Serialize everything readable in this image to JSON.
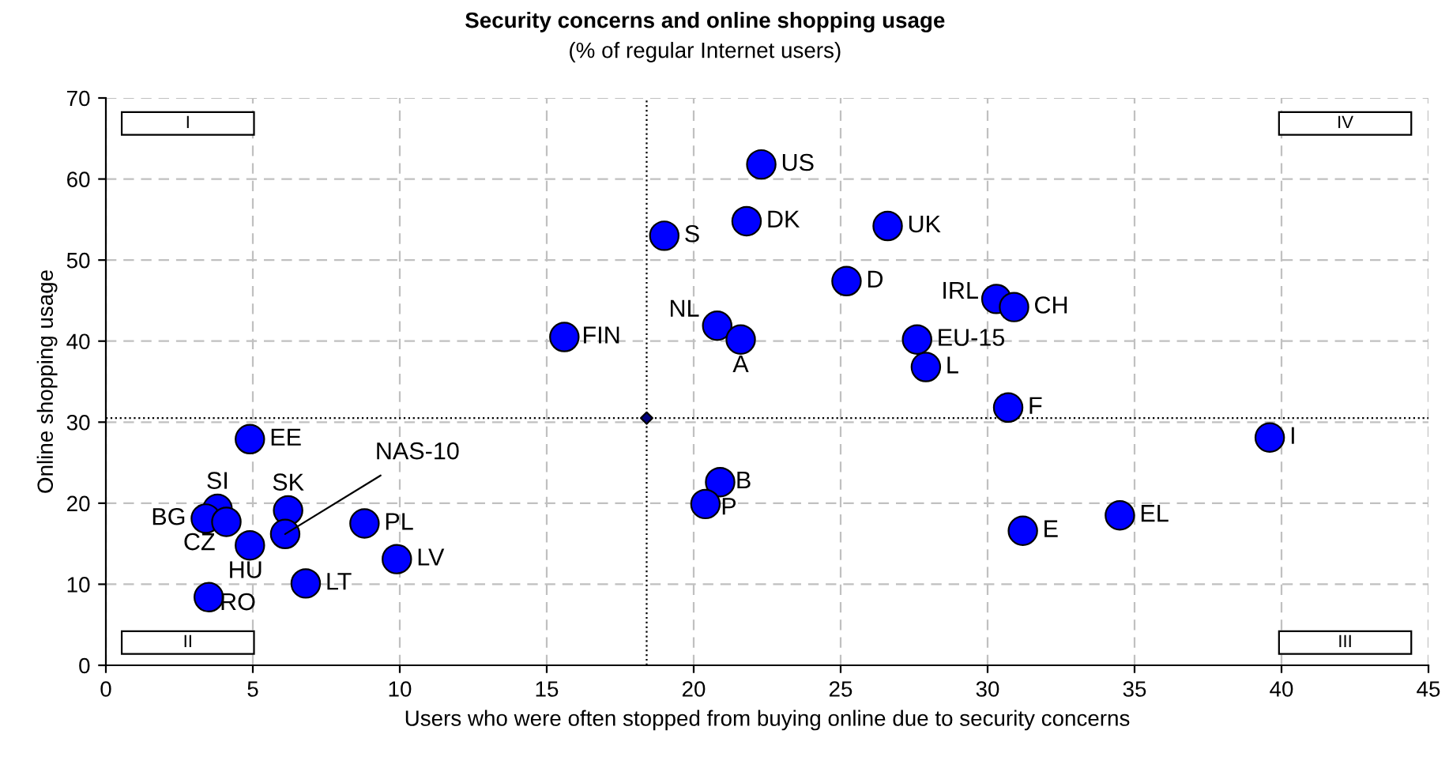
{
  "chart_data": {
    "type": "scatter",
    "title": "Security concerns and online shopping usage",
    "subtitle": "(% of regular Internet users)",
    "xlabel": "Users who were often stopped from buying online due to security concerns",
    "ylabel": "Online shopping usage",
    "xlim": [
      0,
      45
    ],
    "xticks": [
      0,
      5,
      10,
      15,
      20,
      25,
      30,
      35,
      40,
      45
    ],
    "ylim": [
      0,
      70
    ],
    "yticks": [
      0,
      10,
      20,
      30,
      40,
      50,
      60,
      70
    ],
    "grid": true,
    "series": [
      {
        "color": "#0000ff",
        "marker": "circle",
        "x": [
          22.3,
          21.8,
          19.0,
          26.6,
          25.2,
          15.6,
          20.8,
          21.6,
          30.3,
          30.9,
          27.6,
          27.9,
          30.7,
          39.6,
          34.5,
          31.2,
          20.9,
          20.4,
          4.9,
          3.8,
          3.4,
          4.1,
          4.9,
          6.2,
          6.1,
          8.8,
          9.9,
          6.8,
          3.5
        ],
        "values": [
          61.8,
          54.8,
          53.0,
          54.2,
          47.4,
          40.5,
          41.9,
          40.2,
          45.2,
          44.2,
          40.2,
          36.8,
          31.8,
          28.1,
          18.5,
          16.6,
          22.6,
          19.9,
          27.9,
          19.3,
          18.1,
          17.7,
          14.8,
          19.1,
          16.2,
          17.5,
          13.1,
          10.1,
          8.4
        ],
        "value_labels": [
          "US",
          "DK",
          "S",
          "UK",
          "D",
          "FIN",
          "NL",
          "A",
          "IRL",
          "CH",
          "EU-15",
          "L",
          "F",
          "I",
          "EL",
          "E",
          "B",
          "P",
          "EE",
          "SI",
          "BG",
          "CZ",
          "HU",
          "SK",
          "NAS-10",
          "PL",
          "LV",
          "LT",
          "RO"
        ]
      },
      {
        "color": "#000080",
        "marker": "diamond",
        "x": [
          18.4
        ],
        "values": [
          30.5
        ]
      }
    ],
    "ref_lines": [
      {
        "axis": "x",
        "value": 18.4,
        "line_style": "dotted",
        "color": "#000000"
      },
      {
        "axis": "y",
        "value": 30.5,
        "line_style": "dotted",
        "color": "#000000"
      }
    ],
    "annotations": [
      "I",
      "II",
      "III",
      "IV"
    ]
  }
}
